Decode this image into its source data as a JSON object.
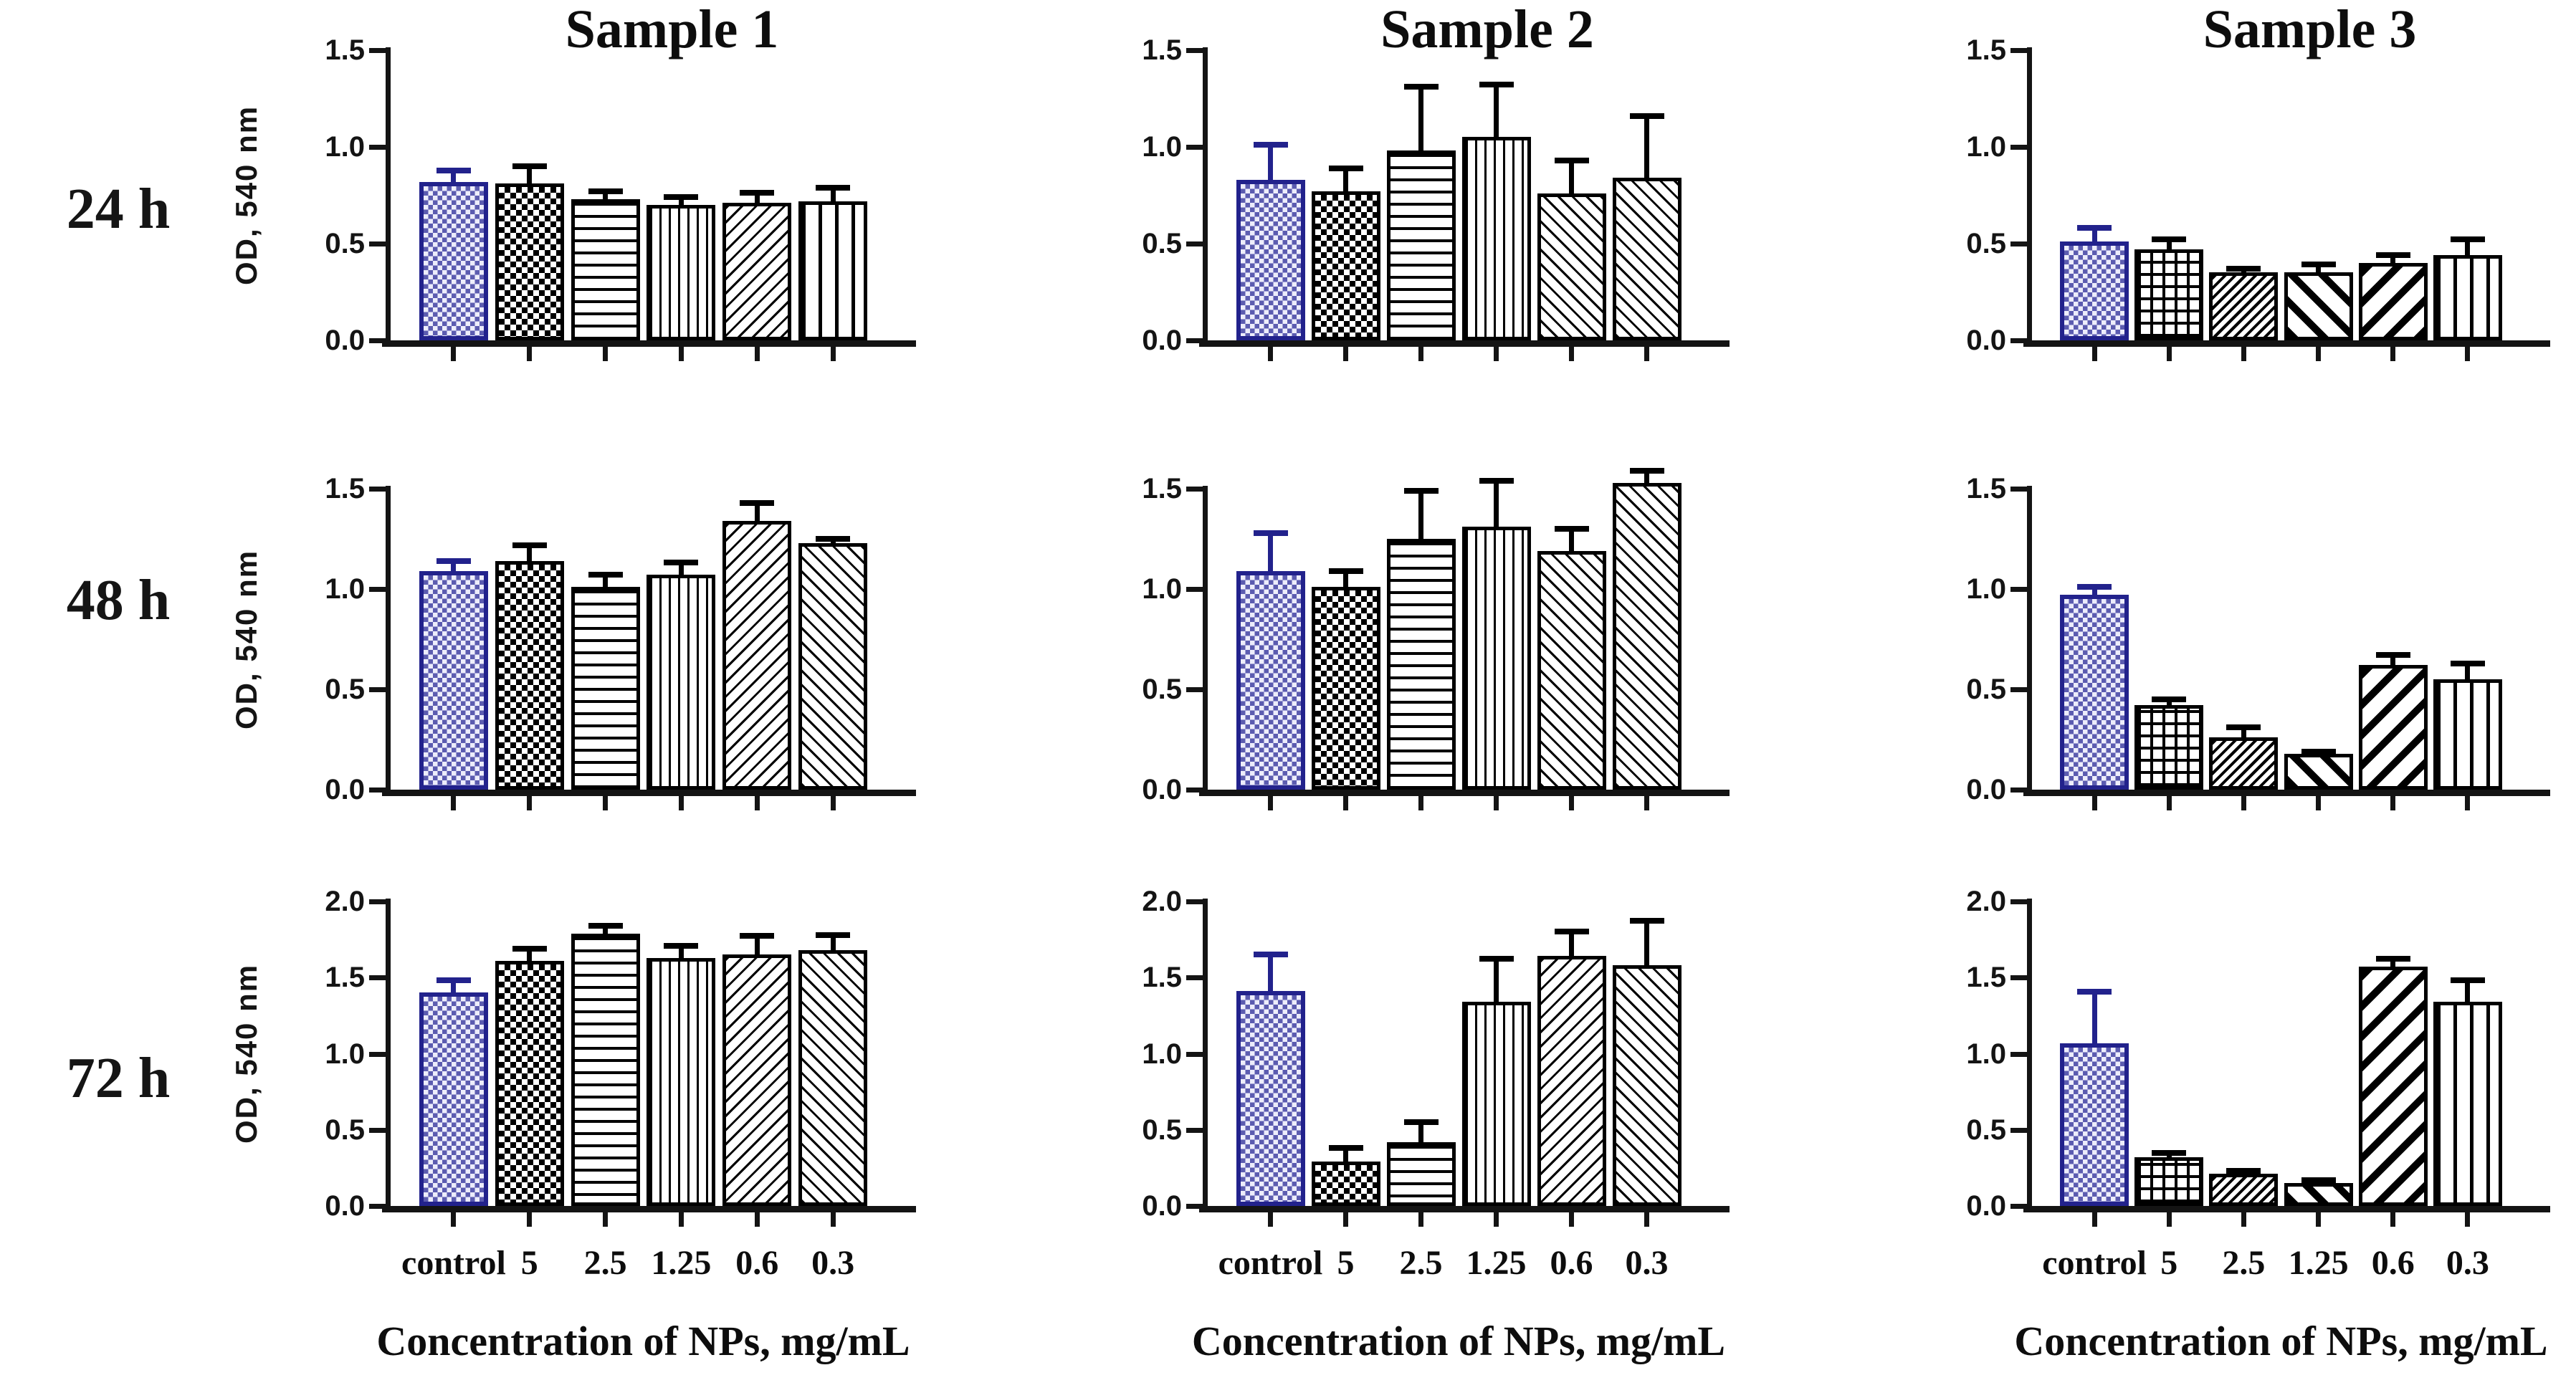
{
  "figure": {
    "rows": [
      "24 h",
      "48 h",
      "72 h"
    ],
    "columns": [
      "Sample 1",
      "Sample 2",
      "Sample 3"
    ],
    "ylabel": "OD, 540 nm",
    "xtitle": "Concentration of NPs, mg/mL",
    "categories": [
      "control",
      "5",
      "2.5",
      "1.25",
      "0.6",
      "0.3"
    ],
    "colors": {
      "axis": "#141414",
      "bar_border": "#000000",
      "control_border": "#22228c",
      "control_fill_light": "#ededfb",
      "control_fill_dot": "#5c5cb0"
    }
  },
  "chart_data": [
    {
      "type": "bar",
      "sample": "Sample 1",
      "time": "24 h",
      "title": "Sample 1",
      "ylabel": "OD, 540 nm",
      "ylim": [
        0,
        1.5
      ],
      "yticks": [
        "1.5",
        "1.0",
        "0.5",
        "0.0"
      ],
      "categories": [
        "control",
        "5",
        "2.5",
        "1.25",
        "0.6",
        "0.3"
      ],
      "values": [
        0.82,
        0.81,
        0.73,
        0.7,
        0.71,
        0.72
      ],
      "errors": [
        0.06,
        0.09,
        0.04,
        0.04,
        0.05,
        0.07
      ],
      "patterns": [
        "blue-dots",
        "checker",
        "hlines",
        "vlines-fine",
        "diag-fwd",
        "vlines-wide"
      ]
    },
    {
      "type": "bar",
      "sample": "Sample 2",
      "time": "24 h",
      "title": "Sample 2",
      "ylabel": "",
      "ylim": [
        0,
        1.5
      ],
      "yticks": [
        "1.5",
        "1.0",
        "0.5",
        "0.0"
      ],
      "categories": [
        "control",
        "5",
        "2.5",
        "1.25",
        "0.6",
        "0.3"
      ],
      "values": [
        0.83,
        0.77,
        0.98,
        1.05,
        0.76,
        0.84
      ],
      "errors": [
        0.18,
        0.12,
        0.33,
        0.27,
        0.17,
        0.32
      ],
      "patterns": [
        "blue-dots",
        "checker",
        "hlines",
        "vlines-fine",
        "diag-back",
        "diag-back"
      ]
    },
    {
      "type": "bar",
      "sample": "Sample 3",
      "time": "24 h",
      "title": "Sample 3",
      "ylabel": "",
      "ylim": [
        0,
        1.5
      ],
      "yticks": [
        "1.5",
        "1.0",
        "0.5",
        "0.0"
      ],
      "categories": [
        "control",
        "5",
        "2.5",
        "1.25",
        "0.6",
        "0.3"
      ],
      "values": [
        0.51,
        0.47,
        0.35,
        0.35,
        0.4,
        0.44
      ],
      "errors": [
        0.07,
        0.05,
        0.02,
        0.04,
        0.04,
        0.08
      ],
      "patterns": [
        "blue-dots",
        "grid",
        "diag-dense",
        "diag-back-bold",
        "diag-fwd-bold",
        "vlines-wide"
      ]
    },
    {
      "type": "bar",
      "sample": "Sample 1",
      "time": "48 h",
      "title": "",
      "ylabel": "OD, 540 nm",
      "ylim": [
        0,
        1.5
      ],
      "yticks": [
        "1.5",
        "1.0",
        "0.5",
        "0.0"
      ],
      "categories": [
        "control",
        "5",
        "2.5",
        "1.25",
        "0.6",
        "0.3"
      ],
      "values": [
        1.09,
        1.14,
        1.01,
        1.07,
        1.34,
        1.23
      ],
      "errors": [
        0.05,
        0.08,
        0.06,
        0.06,
        0.09,
        0.02
      ],
      "patterns": [
        "blue-dots",
        "checker",
        "hlines",
        "vlines-fine",
        "diag-fwd",
        "diag-back"
      ]
    },
    {
      "type": "bar",
      "sample": "Sample 2",
      "time": "48 h",
      "title": "",
      "ylabel": "",
      "ylim": [
        0,
        1.5
      ],
      "yticks": [
        "1.5",
        "1.0",
        "0.5",
        "0.0"
      ],
      "categories": [
        "control",
        "5",
        "2.5",
        "1.25",
        "0.6",
        "0.3"
      ],
      "values": [
        1.09,
        1.01,
        1.25,
        1.31,
        1.19,
        1.53
      ],
      "errors": [
        0.19,
        0.08,
        0.24,
        0.23,
        0.11,
        0.06
      ],
      "patterns": [
        "blue-dots",
        "checker",
        "hlines",
        "vlines-fine",
        "diag-back",
        "diag-back"
      ]
    },
    {
      "type": "bar",
      "sample": "Sample 3",
      "time": "48 h",
      "title": "",
      "ylabel": "",
      "ylim": [
        0,
        1.5
      ],
      "yticks": [
        "1.5",
        "1.0",
        "0.5",
        "0.0"
      ],
      "categories": [
        "control",
        "5",
        "2.5",
        "1.25",
        "0.6",
        "0.3"
      ],
      "values": [
        0.97,
        0.42,
        0.26,
        0.18,
        0.62,
        0.55
      ],
      "errors": [
        0.04,
        0.03,
        0.05,
        0.01,
        0.05,
        0.08
      ],
      "patterns": [
        "blue-dots",
        "grid",
        "diag-dense",
        "diag-back-bold",
        "diag-fwd-bold",
        "vlines-wide"
      ]
    },
    {
      "type": "bar",
      "sample": "Sample 1",
      "time": "72 h",
      "title": "",
      "ylabel": "OD, 540 nm",
      "ylim": [
        0,
        2.0
      ],
      "yticks": [
        "2.0",
        "1.5",
        "1.0",
        "0.5",
        "0.0"
      ],
      "categories": [
        "control",
        "5",
        "2.5",
        "1.25",
        "0.6",
        "0.3"
      ],
      "values": [
        1.4,
        1.61,
        1.79,
        1.63,
        1.65,
        1.68
      ],
      "errors": [
        0.08,
        0.08,
        0.05,
        0.08,
        0.12,
        0.1
      ],
      "patterns": [
        "blue-dots",
        "checker",
        "hlines",
        "vlines-fine",
        "diag-fwd",
        "diag-back"
      ]
    },
    {
      "type": "bar",
      "sample": "Sample 2",
      "time": "72 h",
      "title": "",
      "ylabel": "",
      "ylim": [
        0,
        2.0
      ],
      "yticks": [
        "2.0",
        "1.5",
        "1.0",
        "0.5",
        "0.0"
      ],
      "categories": [
        "control",
        "5",
        "2.5",
        "1.25",
        "0.6",
        "0.3"
      ],
      "values": [
        1.41,
        0.29,
        0.42,
        1.34,
        1.64,
        1.58
      ],
      "errors": [
        0.24,
        0.09,
        0.13,
        0.28,
        0.16,
        0.29
      ],
      "patterns": [
        "blue-dots",
        "checker",
        "hlines",
        "vlines-fine",
        "diag-fwd",
        "diag-back"
      ]
    },
    {
      "type": "bar",
      "sample": "Sample 3",
      "time": "72 h",
      "title": "",
      "ylabel": "",
      "ylim": [
        0,
        2.0
      ],
      "yticks": [
        "2.0",
        "1.5",
        "1.0",
        "0.5",
        "0.0"
      ],
      "categories": [
        "control",
        "5",
        "2.5",
        "1.25",
        "0.6",
        "0.3"
      ],
      "values": [
        1.07,
        0.32,
        0.21,
        0.15,
        1.57,
        1.34
      ],
      "errors": [
        0.34,
        0.03,
        0.02,
        0.02,
        0.05,
        0.14
      ],
      "patterns": [
        "blue-dots",
        "grid",
        "diag-dense",
        "diag-back-bold",
        "diag-fwd-bold",
        "vlines-wide"
      ]
    }
  ]
}
